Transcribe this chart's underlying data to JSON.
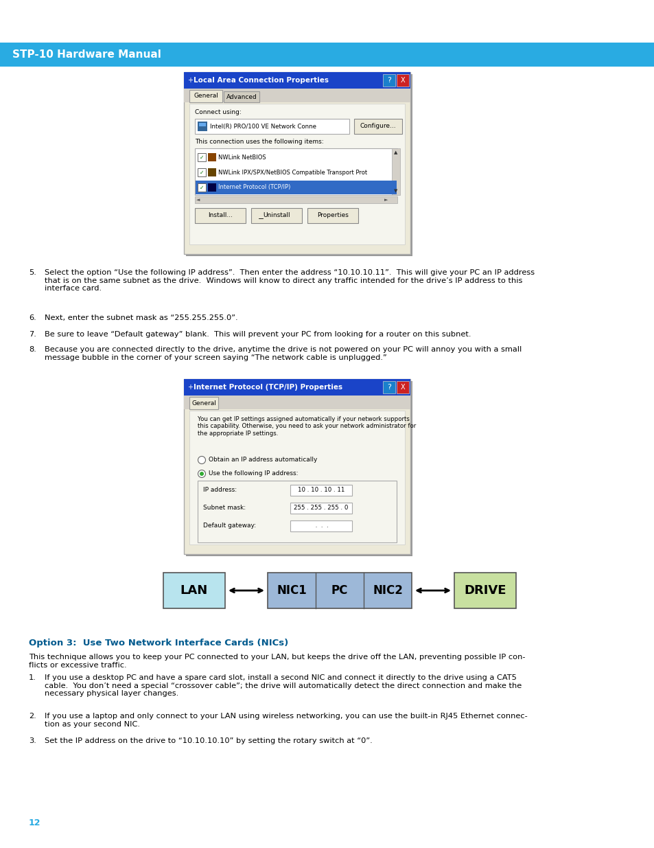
{
  "header_color": "#29ABE2",
  "header_text": "STP-10 Hardware Manual",
  "header_text_color": "#FFFFFF",
  "bg_color": "#FFFFFF",
  "body_text_color": "#000000",
  "body_font_size": 8.2,
  "section_heading": "Option 3:  Use Two Network Interface Cards (NICs)",
  "section_heading_color": "#005A8E",
  "section_heading_size": 9.5,
  "footer_page": "12",
  "footer_color": "#29ABE2",
  "diagram_lan_color": "#B8E4EE",
  "diagram_pc_color": "#9DB8D8",
  "diagram_drive_color": "#C8E0A0",
  "diagram_border_color": "#555555",
  "diagram_arrow_color": "#000000",
  "win_title_color": "#1A44C8",
  "win_bg_color": "#ECE9D8",
  "win_content_bg": "#F5F5EE"
}
